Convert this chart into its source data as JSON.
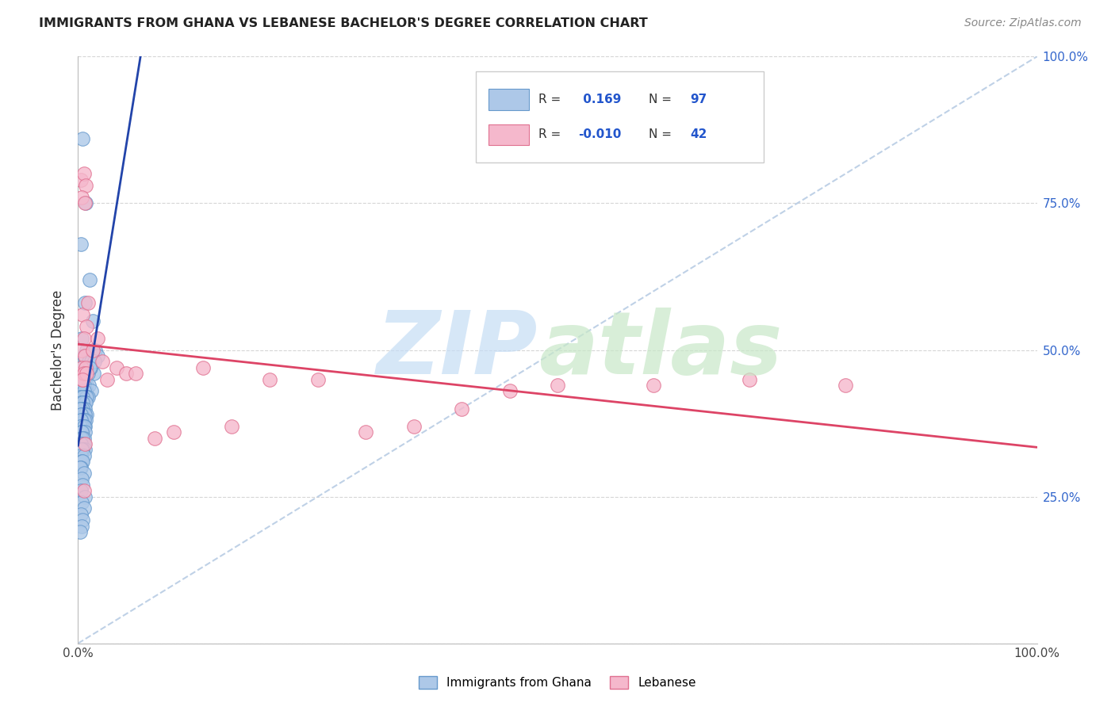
{
  "title": "IMMIGRANTS FROM GHANA VS LEBANESE BACHELOR'S DEGREE CORRELATION CHART",
  "source": "Source: ZipAtlas.com",
  "ylabel": "Bachelor's Degree",
  "ghana_R": 0.169,
  "ghana_N": 97,
  "lebanese_R": -0.01,
  "lebanese_N": 42,
  "ghana_color": "#adc8e8",
  "ghana_edge_color": "#6699cc",
  "lebanese_color": "#f5b8cc",
  "lebanese_edge_color": "#e07090",
  "ghana_line_color": "#2244aa",
  "lebanese_line_color": "#dd4466",
  "diagonal_color": "#b8cce4",
  "legend_text_color": "#333333",
  "legend_value_color": "#2255cc",
  "watermark_zip_color": "#c5ddf5",
  "watermark_atlas_color": "#c8e8c8",
  "ghana_points_x": [
    0.005,
    0.008,
    0.003,
    0.012,
    0.007,
    0.015,
    0.004,
    0.009,
    0.006,
    0.011,
    0.002,
    0.013,
    0.016,
    0.003,
    0.007,
    0.005,
    0.009,
    0.004,
    0.011,
    0.006,
    0.008,
    0.014,
    0.003,
    0.006,
    0.004,
    0.007,
    0.01,
    0.005,
    0.008,
    0.003,
    0.002,
    0.009,
    0.005,
    0.006,
    0.004,
    0.007,
    0.003,
    0.008,
    0.005,
    0.006,
    0.004,
    0.003,
    0.007,
    0.005,
    0.002,
    0.009,
    0.006,
    0.004,
    0.007,
    0.003,
    0.005,
    0.008,
    0.004,
    0.006,
    0.003,
    0.007,
    0.005,
    0.004,
    0.002,
    0.006,
    0.003,
    0.005,
    0.007,
    0.004,
    0.006,
    0.003,
    0.005,
    0.004,
    0.006,
    0.003,
    0.007,
    0.005,
    0.004,
    0.003,
    0.006,
    0.004,
    0.005,
    0.003,
    0.002,
    0.006,
    0.004,
    0.005,
    0.003,
    0.007,
    0.004,
    0.006,
    0.003,
    0.005,
    0.004,
    0.002,
    0.018,
    0.014,
    0.01,
    0.013,
    0.02,
    0.017,
    0.012
  ],
  "ghana_points_y": [
    0.86,
    0.75,
    0.68,
    0.62,
    0.58,
    0.55,
    0.52,
    0.5,
    0.49,
    0.48,
    0.47,
    0.47,
    0.46,
    0.46,
    0.45,
    0.45,
    0.44,
    0.44,
    0.44,
    0.44,
    0.43,
    0.43,
    0.43,
    0.43,
    0.42,
    0.42,
    0.42,
    0.42,
    0.42,
    0.42,
    0.42,
    0.42,
    0.42,
    0.41,
    0.41,
    0.41,
    0.41,
    0.41,
    0.41,
    0.4,
    0.4,
    0.4,
    0.4,
    0.4,
    0.4,
    0.39,
    0.39,
    0.39,
    0.39,
    0.39,
    0.38,
    0.38,
    0.38,
    0.38,
    0.38,
    0.37,
    0.37,
    0.37,
    0.37,
    0.37,
    0.36,
    0.36,
    0.36,
    0.36,
    0.35,
    0.35,
    0.35,
    0.34,
    0.34,
    0.34,
    0.33,
    0.33,
    0.33,
    0.32,
    0.32,
    0.31,
    0.31,
    0.3,
    0.3,
    0.29,
    0.28,
    0.27,
    0.26,
    0.25,
    0.24,
    0.23,
    0.22,
    0.21,
    0.2,
    0.19,
    0.5,
    0.48,
    0.46,
    0.47,
    0.49,
    0.48,
    0.47
  ],
  "lebanese_points_x": [
    0.003,
    0.006,
    0.008,
    0.004,
    0.007,
    0.005,
    0.009,
    0.006,
    0.004,
    0.007,
    0.01,
    0.015,
    0.02,
    0.025,
    0.03,
    0.04,
    0.05,
    0.06,
    0.08,
    0.1,
    0.13,
    0.16,
    0.2,
    0.25,
    0.3,
    0.35,
    0.4,
    0.45,
    0.5,
    0.6,
    0.7,
    0.8,
    0.003,
    0.005,
    0.007,
    0.004,
    0.008,
    0.006,
    0.009,
    0.005,
    0.007,
    0.006
  ],
  "lebanese_points_y": [
    0.79,
    0.8,
    0.78,
    0.76,
    0.75,
    0.56,
    0.54,
    0.52,
    0.5,
    0.49,
    0.58,
    0.5,
    0.52,
    0.48,
    0.45,
    0.47,
    0.46,
    0.46,
    0.35,
    0.36,
    0.47,
    0.37,
    0.45,
    0.45,
    0.36,
    0.37,
    0.4,
    0.43,
    0.44,
    0.44,
    0.45,
    0.44,
    0.46,
    0.45,
    0.46,
    0.47,
    0.47,
    0.46,
    0.46,
    0.45,
    0.34,
    0.26
  ]
}
